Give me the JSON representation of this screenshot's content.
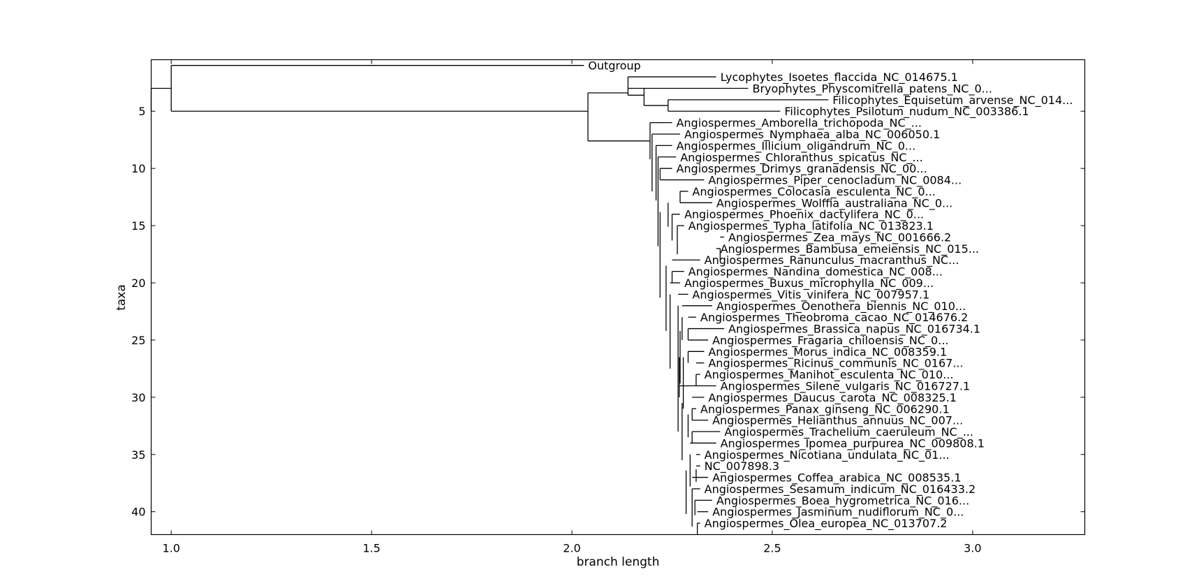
{
  "chart_data": {
    "type": "tree",
    "xlabel": "branch length",
    "ylabel": "taxa",
    "xlim": [
      0.95,
      3.28
    ],
    "ylim": [
      42.0,
      0.5
    ],
    "xticks": [
      1.0,
      1.5,
      2.0,
      2.5,
      3.0
    ],
    "xtick_labels": [
      "1.0",
      "1.5",
      "2.0",
      "2.5",
      "3.0"
    ],
    "yticks": [
      5,
      10,
      15,
      20,
      25,
      30,
      35,
      40
    ],
    "ytick_labels": [
      "5",
      "10",
      "15",
      "20",
      "25",
      "30",
      "35",
      "40"
    ],
    "grid": false,
    "leaves": [
      {
        "label": "Outgroup",
        "x": 2.03
      },
      {
        "label": "Lycophytes_Isoetes_flaccida_NC_014675.1",
        "x": 2.36
      },
      {
        "label": "Bryophytes_Physcomitrella_patens_NC_0...",
        "x": 2.44
      },
      {
        "label": "Filicophytes_Equisetum_arvense_NC_014...",
        "x": 2.64
      },
      {
        "label": "Filicophytes_Psilotum_nudum_NC_003386.1",
        "x": 2.52
      },
      {
        "label": "Angiospermes_Amborella_trichopoda_NC_...",
        "x": 2.25
      },
      {
        "label": "Angiospermes_Nymphaea_alba_NC_006050.1",
        "x": 2.27
      },
      {
        "label": "Angiospermes_Illicium_oligandrum_NC_0...",
        "x": 2.25
      },
      {
        "label": "Angiospermes_Chloranthus_spicatus_NC_...",
        "x": 2.26
      },
      {
        "label": "Angiospermes_Drimys_granadensis_NC_00...",
        "x": 2.25
      },
      {
        "label": "Angiospermes_Piper_cenocladum_NC_0084...",
        "x": 2.33
      },
      {
        "label": "Angiospermes_Colocasia_esculenta_NC_0...",
        "x": 2.29
      },
      {
        "label": "Angiospermes_Wolffia_australiana_NC_0...",
        "x": 2.35
      },
      {
        "label": "Angiospermes_Phoenix_dactylifera_NC_0...",
        "x": 2.27
      },
      {
        "label": "Angiospermes_Typha_latifolia_NC_013823.1",
        "x": 2.28
      },
      {
        "label": "Angiospermes_Zea_mays_NC_001666.2",
        "x": 2.38
      },
      {
        "label": "Angiospermes_Bambusa_emeiensis_NC_015...",
        "x": 2.36
      },
      {
        "label": "Angiospermes_Ranunculus_macranthus_NC...",
        "x": 2.32
      },
      {
        "label": "Angiospermes_Nandina_domestica_NC_008...",
        "x": 2.28
      },
      {
        "label": "Angiospermes_Buxus_microphylla_NC_009...",
        "x": 2.27
      },
      {
        "label": "Angiospermes_Vitis_vinifera_NC_007957.1",
        "x": 2.29
      },
      {
        "label": "Angiospermes_Oenothera_biennis_NC_010...",
        "x": 2.35
      },
      {
        "label": "Angiospermes_Theobroma_cacao_NC_014676.2",
        "x": 2.31
      },
      {
        "label": "Angiospermes_Brassica_napus_NC_016734.1",
        "x": 2.38
      },
      {
        "label": "Angiospermes_Fragaria_chiloensis_NC_0...",
        "x": 2.34
      },
      {
        "label": "Angiospermes_Morus_indica_NC_008359.1",
        "x": 2.33
      },
      {
        "label": "Angiospermes_Ricinus_communis_NC_0167...",
        "x": 2.33
      },
      {
        "label": "Angiospermes_Manihot_esculenta_NC_010...",
        "x": 2.32
      },
      {
        "label": "Angiospermes_Silene_vulgaris_NC_016727.1",
        "x": 2.36
      },
      {
        "label": "Angiospermes_Daucus_carota_NC_008325.1",
        "x": 2.33
      },
      {
        "label": "Angiospermes_Panax_ginseng_NC_006290.1",
        "x": 2.31
      },
      {
        "label": "Angiospermes_Helianthus_annuus_NC_007...",
        "x": 2.34
      },
      {
        "label": "Angiospermes_Trachelium_caeruleum_NC_...",
        "x": 2.37
      },
      {
        "label": "Angiospermes_Ipomea_purpurea_NC_009808.1",
        "x": 2.36
      },
      {
        "label": "Angiospermes_Nicotiana_undulata_NC_01...",
        "x": 2.32
      },
      {
        "label": "NC_007898.3",
        "x": 2.32
      },
      {
        "label": "Angiospermes_Coffea_arabica_NC_008535.1",
        "x": 2.34
      },
      {
        "label": "Angiospermes_Sesamum_indicum_NC_016433.2",
        "x": 2.32
      },
      {
        "label": "Angiospermes_Boea_hygrometrica_NC_016...",
        "x": 2.35
      },
      {
        "label": "Angiospermes_Jasminum_nudiflorum_NC_0...",
        "x": 2.34
      },
      {
        "label": "Angiospermes_Olea_europea_NC_013707.2",
        "x": 2.32
      }
    ],
    "clades": [
      {
        "x": 0.95,
        "ya": 3,
        "yb": 5
      },
      {
        "x": 1.0,
        "ya": 1,
        "yb": 5
      },
      {
        "x": 2.04,
        "ya": 3.4,
        "yb": 7.6
      },
      {
        "x": 2.14,
        "ya": 2,
        "yb": 3.6
      },
      {
        "x": 2.18,
        "ya": 3,
        "yb": 4.5
      },
      {
        "x": 2.24,
        "ya": 4,
        "yb": 5
      },
      {
        "x": 2.195,
        "ya": 6,
        "yb": 9.2
      },
      {
        "x": 2.2,
        "ya": 7,
        "yb": 12.0
      },
      {
        "x": 2.21,
        "ya": 8,
        "yb": 12.8
      },
      {
        "x": 2.215,
        "ya": 9,
        "yb": 16.8
      },
      {
        "x": 2.22,
        "ya": 10,
        "yb": 11
      },
      {
        "x": 2.22,
        "ya": 13.8,
        "yb": 21.3
      },
      {
        "x": 2.24,
        "ya": 13,
        "yb": 15.1
      },
      {
        "x": 2.27,
        "ya": 12,
        "yb": 13
      },
      {
        "x": 2.25,
        "ya": 14,
        "yb": 16.3
      },
      {
        "x": 2.263,
        "ya": 15,
        "yb": 17.5
      },
      {
        "x": 2.37,
        "ya": 17,
        "yb": 18
      },
      {
        "x": 2.235,
        "ya": 18.5,
        "yb": 24.2
      },
      {
        "x": 2.25,
        "ya": 19,
        "yb": 20
      },
      {
        "x": 2.245,
        "ya": 21,
        "yb": 27.5
      },
      {
        "x": 2.265,
        "ya": 22,
        "yb": 33.0
      },
      {
        "x": 2.268,
        "ya": 26.5,
        "yb": 30
      },
      {
        "x": 2.27,
        "ya": 24.2,
        "yb": 28.8
      },
      {
        "x": 2.275,
        "ya": 23,
        "yb": 25
      },
      {
        "x": 2.29,
        "ya": 24,
        "yb": 25
      },
      {
        "x": 2.278,
        "ya": 26.5,
        "yb": 31.0
      },
      {
        "x": 2.29,
        "ya": 26,
        "yb": 27
      },
      {
        "x": 2.31,
        "ya": 28,
        "yb": 29
      },
      {
        "x": 2.275,
        "ya": 35.5,
        "yb": 30.5
      },
      {
        "x": 2.29,
        "ya": 31.5,
        "yb": 33.5
      },
      {
        "x": 2.3,
        "ya": 31,
        "yb": 32
      },
      {
        "x": 2.3,
        "ya": 33,
        "yb": 34
      },
      {
        "x": 2.285,
        "ya": 36.4,
        "yb": 40.2
      },
      {
        "x": 2.295,
        "ya": 35,
        "yb": 37.8
      },
      {
        "x": 2.31,
        "ya": 36.3,
        "yb": 37.4
      },
      {
        "x": 2.3,
        "ya": 38,
        "yb": 41.3
      },
      {
        "x": 2.307,
        "ya": 39,
        "yb": 40.3
      },
      {
        "x": 2.313,
        "ya": 41,
        "yb": 42
      }
    ]
  }
}
